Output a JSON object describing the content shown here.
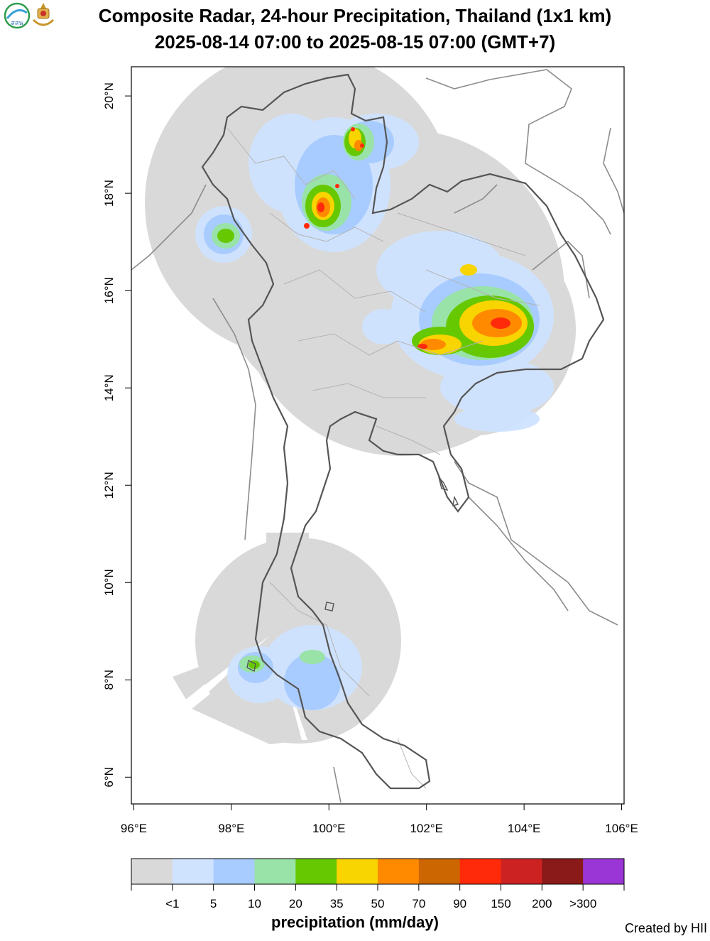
{
  "header": {
    "title_line1": "Composite Radar, 24-hour Precipitation, Thailand (1x1 km)",
    "title_line2": "2025-08-14 07:00 to 2025-08-15 07:00 (GMT+7)"
  },
  "logos": [
    "hii-logo",
    "royal-emblem-logo"
  ],
  "logo_text": "สสน",
  "map": {
    "lon_range": [
      95.95,
      106.05
    ],
    "lat_range": [
      5.45,
      20.6
    ],
    "x_ticks": [
      {
        "value": 96,
        "label": "96°E"
      },
      {
        "value": 98,
        "label": "98°E"
      },
      {
        "value": 100,
        "label": "100°E"
      },
      {
        "value": 102,
        "label": "102°E"
      },
      {
        "value": 104,
        "label": "104°E"
      },
      {
        "value": 106,
        "label": "106°E"
      }
    ],
    "y_ticks": [
      {
        "value": 6,
        "label": "6°N"
      },
      {
        "value": 8,
        "label": "8°N"
      },
      {
        "value": 10,
        "label": "10°N"
      },
      {
        "value": 12,
        "label": "12°N"
      },
      {
        "value": 14,
        "label": "14°N"
      },
      {
        "value": 16,
        "label": "16°N"
      },
      {
        "value": 18,
        "label": "18°N"
      },
      {
        "value": 20,
        "label": "20°N"
      }
    ],
    "radar_coverage_color": "#d9d9d9"
  },
  "legend": {
    "title": "precipitation (mm/day)",
    "colors": [
      "#d9d9d9",
      "#cfe3ff",
      "#a8ccff",
      "#99e2a8",
      "#66c800",
      "#f8d400",
      "#ff8a00",
      "#cc6600",
      "#ff2a0a",
      "#cc2222",
      "#8a1a1a",
      "#9b36d6"
    ],
    "labels": [
      "<1",
      "5",
      "10",
      "20",
      "35",
      "50",
      "70",
      "90",
      "150",
      "200",
      ">300"
    ]
  },
  "credit": "Created by HII"
}
